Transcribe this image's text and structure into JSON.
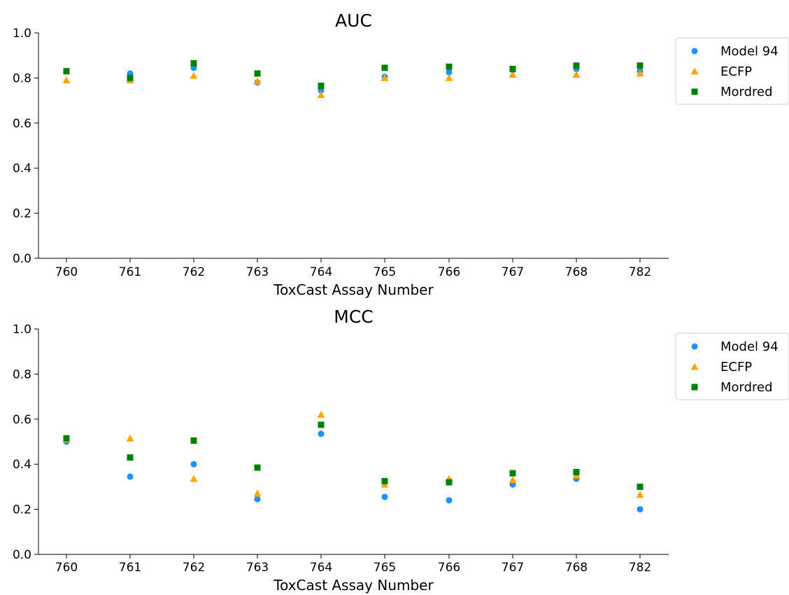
{
  "chart_data": [
    {
      "type": "scatter",
      "title": "AUC",
      "xlabel": "ToxCast Assay Number",
      "ylabel": "",
      "categories": [
        "760",
        "761",
        "762",
        "763",
        "764",
        "765",
        "766",
        "767",
        "768",
        "782"
      ],
      "ylim": [
        0,
        1.0
      ],
      "yticks": [
        "0.0",
        "0.2",
        "0.4",
        "0.6",
        "0.8",
        "1.0"
      ],
      "grid": false,
      "legend_position": "right",
      "series": [
        {
          "name": "Model 94",
          "marker": "circle",
          "color": "#1e90ff",
          "values": [
            0.83,
            0.82,
            0.845,
            0.78,
            0.745,
            0.805,
            0.825,
            0.835,
            0.84,
            0.83
          ]
        },
        {
          "name": "ECFP",
          "marker": "triangle",
          "color": "#ffa500",
          "values": [
            0.79,
            0.79,
            0.81,
            0.785,
            0.725,
            0.8,
            0.8,
            0.815,
            0.815,
            0.82
          ]
        },
        {
          "name": "Mordred",
          "marker": "square",
          "color": "#008000",
          "values": [
            0.83,
            0.8,
            0.865,
            0.82,
            0.765,
            0.845,
            0.85,
            0.84,
            0.855,
            0.855
          ]
        }
      ]
    },
    {
      "type": "scatter",
      "title": "MCC",
      "xlabel": "ToxCast Assay Number",
      "ylabel": "",
      "categories": [
        "760",
        "761",
        "762",
        "763",
        "764",
        "765",
        "766",
        "767",
        "768",
        "782"
      ],
      "ylim": [
        0,
        1.0
      ],
      "yticks": [
        "0.0",
        "0.2",
        "0.4",
        "0.6",
        "0.8",
        "1.0"
      ],
      "grid": false,
      "legend_position": "right",
      "series": [
        {
          "name": "Model 94",
          "marker": "circle",
          "color": "#1e90ff",
          "values": [
            0.5,
            0.345,
            0.4,
            0.245,
            0.535,
            0.255,
            0.24,
            0.31,
            0.335,
            0.2
          ]
        },
        {
          "name": "ECFP",
          "marker": "triangle",
          "color": "#ffa500",
          "values": [
            0.51,
            0.515,
            0.335,
            0.27,
            0.62,
            0.31,
            0.335,
            0.33,
            0.35,
            0.265
          ]
        },
        {
          "name": "Mordred",
          "marker": "square",
          "color": "#008000",
          "values": [
            0.515,
            0.43,
            0.505,
            0.385,
            0.575,
            0.325,
            0.32,
            0.36,
            0.365,
            0.3
          ]
        }
      ]
    }
  ]
}
